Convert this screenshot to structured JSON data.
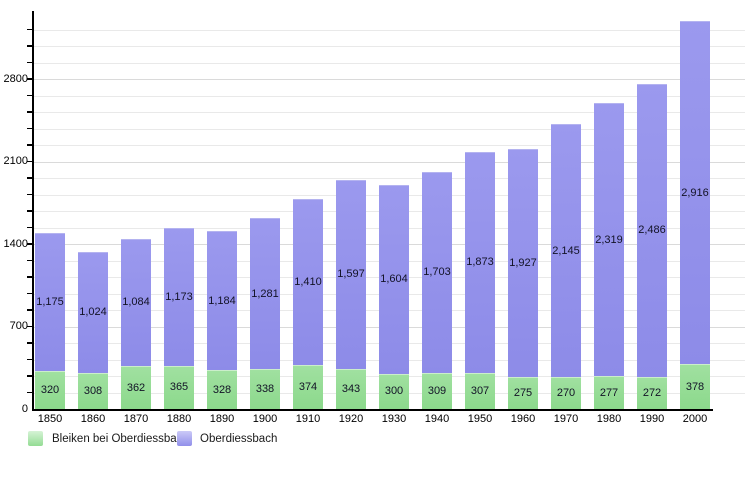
{
  "chart_data": {
    "type": "bar",
    "stacked": true,
    "title": "",
    "xlabel": "",
    "ylabel": "",
    "categories": [
      "1850",
      "1860",
      "1870",
      "1880",
      "1890",
      "1900",
      "1910",
      "1920",
      "1930",
      "1940",
      "1950",
      "1960",
      "1970",
      "1980",
      "1990",
      "2000"
    ],
    "series": [
      {
        "name": "Bleiken bei Oberdiessbach",
        "color": "#8fd98f",
        "values": [
          320,
          308,
          362,
          365,
          328,
          338,
          374,
          343,
          300,
          309,
          307,
          275,
          270,
          277,
          272,
          378
        ]
      },
      {
        "name": "Oberdiessbach",
        "color": "#918fea",
        "values": [
          1175,
          1024,
          1084,
          1173,
          1184,
          1281,
          1410,
          1597,
          1604,
          1703,
          1873,
          1927,
          2145,
          2319,
          2486,
          2916
        ]
      }
    ],
    "ylim": [
      0,
      3360
    ],
    "ytick_labels": [
      "0",
      "700",
      "1400",
      "2100",
      "2800"
    ],
    "ytick_labeled_values": [
      0,
      700,
      1400,
      2100,
      2800
    ],
    "ytick_minor_step": 140,
    "grid": true,
    "bar_value_labels": true,
    "legend_position": "bottom-left"
  },
  "legend": {
    "items": [
      {
        "label": "Bleiken bei Oberdiessbach",
        "color": "#8fd98f"
      },
      {
        "label": "Oberdiessbach",
        "color": "#918fea"
      }
    ]
  }
}
